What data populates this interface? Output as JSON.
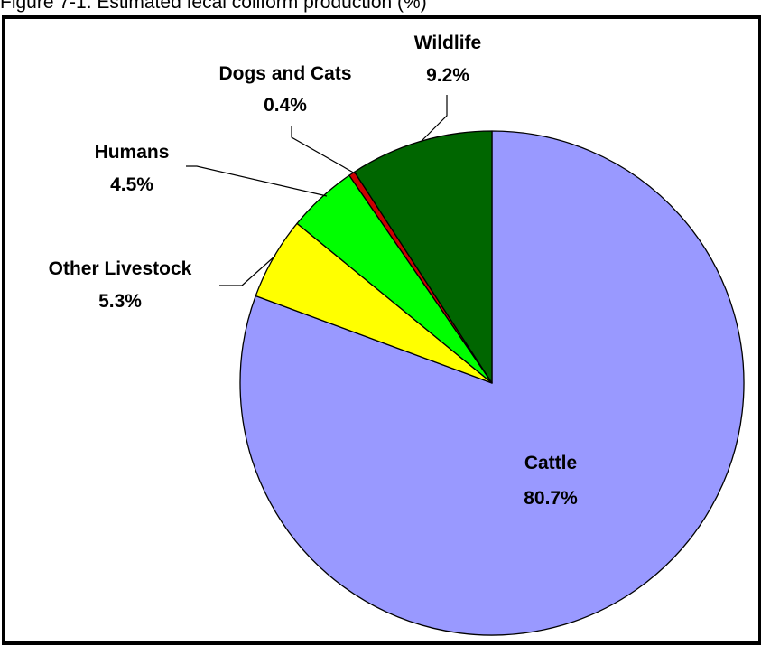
{
  "caption": "Figure 7-1. Estimated fecal coliform production (%)",
  "chart_data": {
    "type": "pie",
    "title": "",
    "start": "top",
    "direction": "clockwise",
    "slices": [
      {
        "label": "Cattle",
        "value": 80.7,
        "value_label": "80.7%",
        "color": "#9999ff"
      },
      {
        "label": "Other Livestock",
        "value": 5.3,
        "value_label": "5.3%",
        "color": "#ffff00"
      },
      {
        "label": "Humans",
        "value": 4.5,
        "value_label": "4.5%",
        "color": "#00ff00"
      },
      {
        "label": "Dogs and Cats",
        "value": 0.4,
        "value_label": "0.4%",
        "color": "#cc0000"
      },
      {
        "label": "Wildlife",
        "value": 9.2,
        "value_label": "9.2%",
        "color": "#006600"
      }
    ]
  }
}
